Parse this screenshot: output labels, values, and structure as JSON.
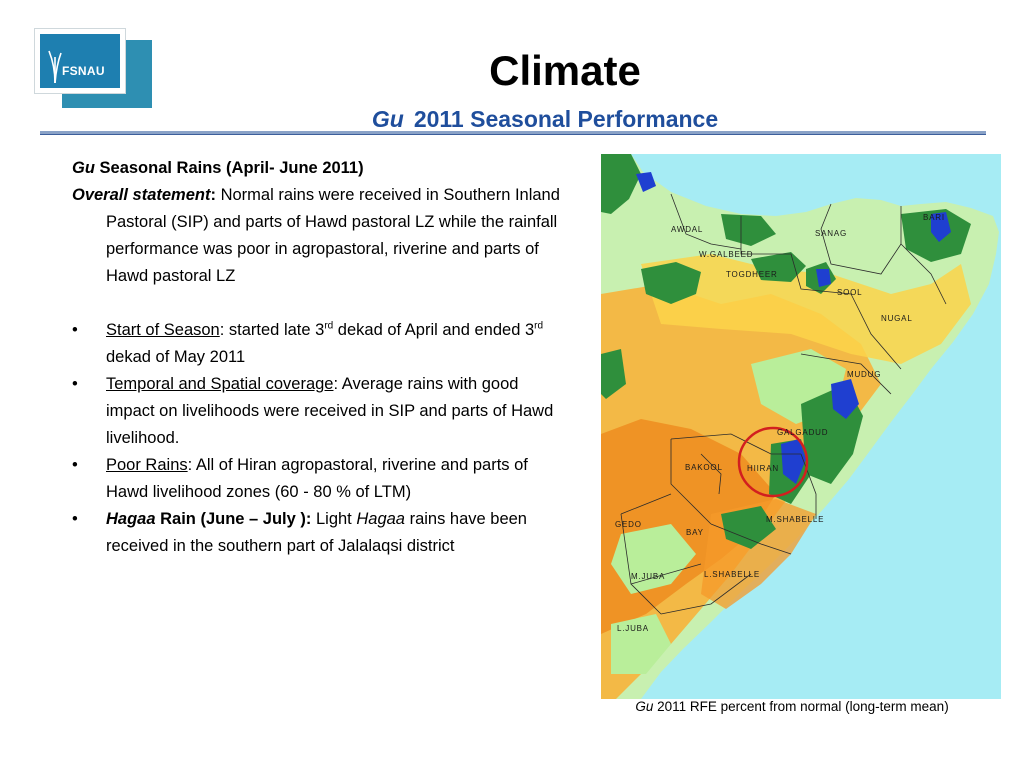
{
  "logo": {
    "text": "FSNAU"
  },
  "header": {
    "title": "Climate",
    "subtitle_italic": "Gu",
    "subtitle_rest": "2011 Seasonal Performance"
  },
  "content": {
    "heading_italic": "Gu",
    "heading_rest": " Seasonal Rains (April- June 2011)",
    "overall_label": "Overall statement",
    "overall_colon": ":",
    "overall_text": " Normal rains were received in Southern Inland Pastoral (SIP) and parts of Hawd pastoral LZ while the rainfall performance was poor in agropastoral, riverine and parts of Hawd pastoral  LZ",
    "bullets": [
      {
        "marker": "•",
        "label": "Start of Season",
        "pre": ": started late 3",
        "sup1": "rd",
        "mid": " dekad of April and ended 3",
        "sup2": "rd",
        "post": " dekad of May 2011"
      },
      {
        "marker": "•",
        "label": "Temporal and Spatial coverage",
        "text": ":   Average rains with good  impact on livelihoods were received in SIP and parts of Hawd livelihood."
      },
      {
        "marker": "•",
        "label": "Poor Rains",
        "text": ": All of Hiran agropastoral, riverine and parts of Hawd livelihood zones (60 - 80 % of LTM)"
      },
      {
        "marker": "•",
        "label_italic": "Hagaa",
        "label_rest": " Rain (June – July ):",
        "t1": "  Light ",
        "t_italic": "Hagaa",
        "t2": " rains have been received in the southern part of Jalalaqsi district"
      }
    ]
  },
  "map": {
    "regions": [
      "AWDAL",
      "W.GALBEED",
      "TOGDHEER",
      "SANAG",
      "BARI",
      "SOOL",
      "NUGAL",
      "MUDUG",
      "GALGADUD",
      "BAKOOL",
      "HIIRAN",
      "GEDO",
      "BAY",
      "M.SHABELLE",
      "M.JUBA",
      "L.SHABELLE",
      "L.JUBA"
    ]
  },
  "caption": {
    "italic": "Gu",
    "text": " 2011 RFE percent from normal (long-term mean)"
  },
  "colors": {
    "title_blue": "#1f4e9c",
    "sea": "#a6ecf4",
    "normal_green": "#2f8f3c",
    "light_green": "#c8f0b0",
    "poor_orange": "#f5a623",
    "wet_blue": "#1f3fd0",
    "circle": "#d21f1f"
  }
}
